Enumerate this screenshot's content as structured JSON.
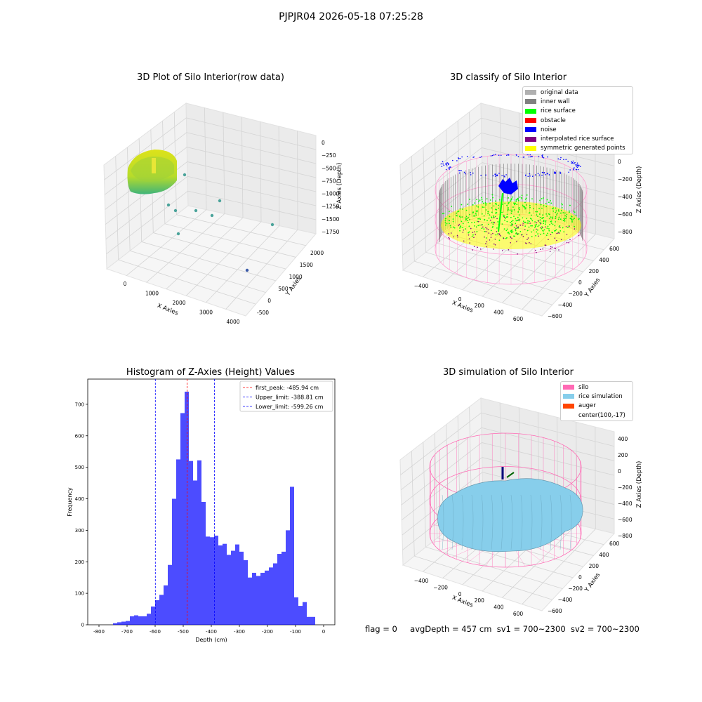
{
  "figure": {
    "suptitle": "PJPJR04 2026-05-18 07:25:28",
    "footer": {
      "flag": "flag = 0",
      "avg_depth": "avgDepth = 457 cm",
      "sv1": "sv1 = 700~2300",
      "sv2": "sv2 = 700~2300"
    }
  },
  "panels": {
    "raw": {
      "title": "3D Plot of Silo Interior(row data)",
      "xlabel": "X Axies",
      "ylabel": "Y Axies",
      "zlabel": "Z Axies (Depth)",
      "xticks": [
        "0",
        "1000",
        "2000",
        "3000",
        "4000"
      ],
      "yticks": [
        "-500",
        "0",
        "500",
        "1000",
        "1500",
        "2000"
      ],
      "zticks": [
        "0",
        "−250",
        "−500",
        "−750",
        "−1000",
        "−1250",
        "−1500",
        "−1750"
      ]
    },
    "classify": {
      "title": "3D classify of Silo Interior",
      "xlabel": "X Axies",
      "ylabel": "Y Axies",
      "zlabel": "Z Axies (Depth)",
      "xticks": [
        "−400",
        "−200",
        "0",
        "200",
        "400",
        "600"
      ],
      "yticks": [
        "−600",
        "−400",
        "−200",
        "0",
        "200",
        "400",
        "600"
      ],
      "zticks": [
        "200",
        "0",
        "−200",
        "−400",
        "−600",
        "−800"
      ],
      "legend": [
        {
          "label": "original data",
          "color": "#b0b0b0"
        },
        {
          "label": "inner wall",
          "color": "#808080"
        },
        {
          "label": "rice surface",
          "color": "#00ff00"
        },
        {
          "label": "obstacle",
          "color": "#ff0000"
        },
        {
          "label": "noise",
          "color": "#0000ff"
        },
        {
          "label": "interpolated rice surface",
          "color": "#800080"
        },
        {
          "label": "symmetric generated points",
          "color": "#ffff00"
        }
      ]
    },
    "simulation": {
      "title": "3D simulation of Silo Interior",
      "xlabel": "X Axies",
      "ylabel": "Y Axies",
      "zlabel": "Z Axies (Depth)",
      "xticks": [
        "−400",
        "−200",
        "0",
        "200",
        "400",
        "600"
      ],
      "yticks": [
        "−600",
        "−400",
        "−200",
        "0",
        "200",
        "400",
        "600"
      ],
      "zticks": [
        "400",
        "200",
        "0",
        "−200",
        "−400",
        "−600",
        "−800"
      ],
      "legend": [
        {
          "label": "silo",
          "color": "#ff69b4"
        },
        {
          "label": "rice simulation",
          "color": "#87ceeb"
        },
        {
          "label": "auger",
          "color": "#ff4500"
        },
        {
          "label": "center(100,-17)",
          "color": ""
        }
      ]
    }
  },
  "chart_data": {
    "type": "bar",
    "title": "Histogram of Z-Axies (Height) Values",
    "xlabel": "Depth (cm)",
    "ylabel": "Frequency",
    "xlim": [
      -840,
      40
    ],
    "ylim": [
      0,
      780
    ],
    "xticks": [
      -800,
      -700,
      -600,
      -500,
      -400,
      -300,
      -200,
      -100,
      0
    ],
    "yticks": [
      0,
      100,
      200,
      300,
      400,
      500,
      600,
      700
    ],
    "bar_color": "#0000ff",
    "bins": [
      [
        -750,
        -735,
        5
      ],
      [
        -735,
        -720,
        8
      ],
      [
        -720,
        -705,
        10
      ],
      [
        -705,
        -690,
        12
      ],
      [
        -690,
        -675,
        27
      ],
      [
        -675,
        -660,
        30
      ],
      [
        -660,
        -645,
        27
      ],
      [
        -645,
        -630,
        27
      ],
      [
        -630,
        -615,
        35
      ],
      [
        -615,
        -600,
        58
      ],
      [
        -600,
        -585,
        78
      ],
      [
        -585,
        -570,
        95
      ],
      [
        -570,
        -555,
        125
      ],
      [
        -555,
        -540,
        190
      ],
      [
        -540,
        -525,
        400
      ],
      [
        -525,
        -510,
        525
      ],
      [
        -510,
        -495,
        672
      ],
      [
        -495,
        -480,
        740
      ],
      [
        -480,
        -465,
        520
      ],
      [
        -465,
        -450,
        458
      ],
      [
        -450,
        -435,
        522
      ],
      [
        -435,
        -420,
        390
      ],
      [
        -420,
        -405,
        280
      ],
      [
        -405,
        -390,
        278
      ],
      [
        -390,
        -375,
        283
      ],
      [
        -375,
        -360,
        252
      ],
      [
        -360,
        -345,
        257
      ],
      [
        -345,
        -330,
        222
      ],
      [
        -330,
        -315,
        235
      ],
      [
        -315,
        -300,
        255
      ],
      [
        -300,
        -285,
        232
      ],
      [
        -285,
        -270,
        205
      ],
      [
        -270,
        -255,
        150
      ],
      [
        -255,
        -240,
        165
      ],
      [
        -240,
        -225,
        155
      ],
      [
        -225,
        -210,
        165
      ],
      [
        -210,
        -195,
        172
      ],
      [
        -195,
        -180,
        182
      ],
      [
        -180,
        -165,
        195
      ],
      [
        -165,
        -150,
        225
      ],
      [
        -150,
        -135,
        232
      ],
      [
        -135,
        -120,
        300
      ],
      [
        -120,
        -105,
        438
      ],
      [
        -105,
        -90,
        87
      ],
      [
        -90,
        -75,
        60
      ],
      [
        -75,
        -60,
        72
      ],
      [
        -60,
        -45,
        25
      ],
      [
        -45,
        -30,
        25
      ]
    ],
    "vlines": [
      {
        "x": -485.94,
        "color": "#ff0000",
        "label": "first_peak: -485.94 cm"
      },
      {
        "x": -388.81,
        "color": "#0000ff",
        "label": "Upper_limit: -388.81 cm"
      },
      {
        "x": -599.26,
        "color": "#0000ff",
        "label": "Lower_limit: -599.26 cm"
      }
    ],
    "legend_position": "top-right"
  }
}
